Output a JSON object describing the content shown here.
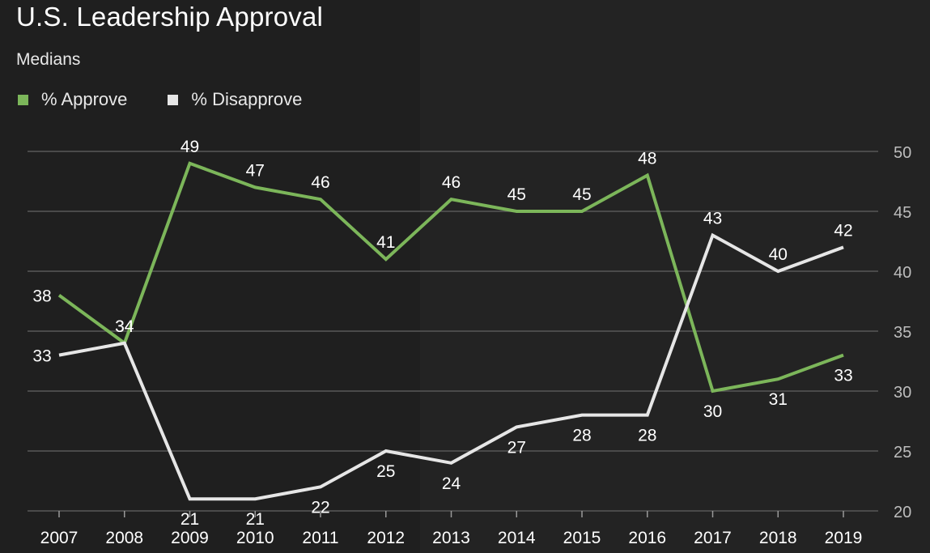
{
  "colors": {
    "approve": "#7cb65a",
    "disapprove": "#e6e6e6",
    "grid": "#585858",
    "tick_text": "#bdbdbd"
  },
  "header": {
    "title": "U.S. Leadership Approval",
    "subtitle": "Medians"
  },
  "chart_data": {
    "type": "line",
    "title": "U.S. Leadership Approval",
    "subtitle": "Medians",
    "x": [
      "2007",
      "2008",
      "2009",
      "2010",
      "2011",
      "2012",
      "2013",
      "2014",
      "2015",
      "2016",
      "2017",
      "2018",
      "2019"
    ],
    "ylim": [
      20,
      50
    ],
    "yticks": [
      20,
      25,
      30,
      35,
      40,
      45,
      50
    ],
    "y_axis_position": "right",
    "grid": true,
    "legend_placement": "top-left",
    "series": [
      {
        "name": "% Approve",
        "color": "#7cb65a",
        "values": [
          38,
          34,
          49,
          47,
          46,
          41,
          46,
          45,
          45,
          48,
          30,
          31,
          33
        ]
      },
      {
        "name": "% Disapprove",
        "color": "#e6e6e6",
        "values": [
          33,
          34,
          21,
          21,
          22,
          25,
          24,
          27,
          28,
          28,
          43,
          40,
          42
        ]
      }
    ]
  }
}
